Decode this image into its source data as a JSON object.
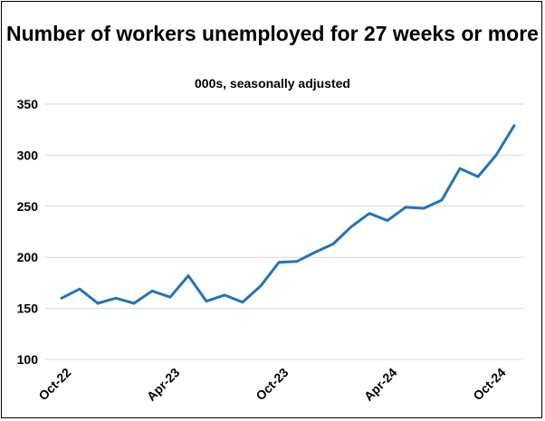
{
  "chart_data": {
    "type": "line",
    "title": "Number of workers unemployed for 27 weeks or more",
    "subtitle": "000s, seasonally adjusted",
    "xlabel": "",
    "ylabel": "",
    "ylim": [
      100,
      350
    ],
    "yticks": [
      "100",
      "150",
      "200",
      "250",
      "300",
      "350"
    ],
    "x": [
      "Oct-22",
      "Nov-22",
      "Dec-22",
      "Jan-23",
      "Feb-23",
      "Mar-23",
      "Apr-23",
      "May-23",
      "Jun-23",
      "Jul-23",
      "Aug-23",
      "Sep-23",
      "Oct-23",
      "Nov-23",
      "Dec-23",
      "Jan-24",
      "Feb-24",
      "Mar-24",
      "Apr-24",
      "May-24",
      "Jun-24",
      "Jul-24",
      "Aug-24",
      "Sep-24",
      "Oct-24",
      "Nov-24"
    ],
    "xtick_labels": [
      "Oct-22",
      "Apr-23",
      "Oct-23",
      "Apr-24",
      "Oct-24"
    ],
    "series": [
      {
        "values": [
          160,
          169,
          155,
          160,
          155,
          167,
          161,
          182,
          157,
          163,
          156,
          172,
          195,
          196,
          205,
          213,
          230,
          243,
          236,
          249,
          248,
          256,
          287,
          279,
          300,
          329
        ],
        "color": "#2474b5"
      }
    ],
    "grid": true,
    "legend": "none"
  }
}
